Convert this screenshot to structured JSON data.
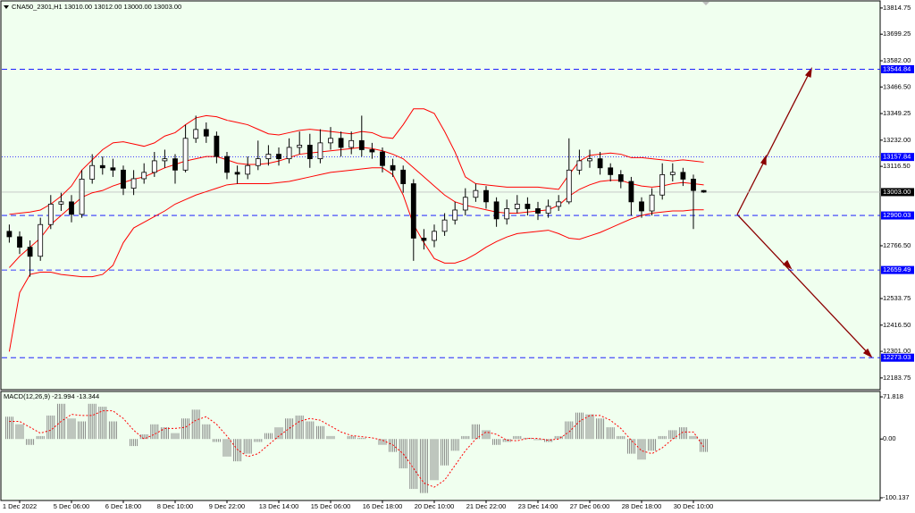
{
  "chart_data": [
    {
      "type": "candlestick",
      "title": "CNA50_2301,H1  13010.00 13012.00 13000.00 13003.00",
      "categories": [
        null,
        "1 Dec 2022",
        null,
        null,
        null,
        null,
        "5 Dec 06:00",
        null,
        null,
        null,
        null,
        "6 Dec 18:00",
        null,
        null,
        null,
        null,
        "8 Dec 10:00",
        null,
        null,
        null,
        null,
        "9 Dec 22:00",
        null,
        null,
        null,
        null,
        "13 Dec 14:00",
        null,
        null,
        null,
        null,
        "15 Dec 06:00",
        null,
        null,
        null,
        null,
        "16 Dec 18:00",
        null,
        null,
        null,
        null,
        "20 Dec 10:00",
        null,
        null,
        null,
        null,
        "21 Dec 22:00",
        null,
        null,
        null,
        null,
        "23 Dec 14:00",
        null,
        null,
        null,
        null,
        "27 Dec 06:00",
        null,
        null,
        null,
        null,
        "28 Dec 18:00",
        null,
        null,
        null,
        null,
        "30 Dec 10:00",
        null
      ],
      "open": [
        12830,
        12806,
        12760,
        12720,
        12860,
        12950,
        12960,
        12905,
        13060,
        13120,
        13110,
        13100,
        13020,
        13062,
        13090,
        13141,
        13150,
        13100,
        13240,
        13279,
        13250,
        13160,
        13090,
        13082,
        13120,
        13150,
        13170,
        13150,
        13200,
        13210,
        13150,
        13220,
        13240,
        13200,
        13230,
        13190,
        13180,
        13120,
        13100,
        13040,
        12800,
        12790,
        12830,
        12880,
        12924,
        12980,
        13010,
        12960,
        12885,
        12930,
        12950,
        12930,
        12910,
        12940,
        12960,
        13100,
        13141,
        13150,
        13110,
        13080,
        13050,
        12960,
        12920,
        12990,
        13080,
        13090,
        13060,
        13010
      ],
      "high": [
        12860,
        12830,
        12790,
        12890,
        12990,
        13000,
        12990,
        13100,
        13170,
        13160,
        13150,
        13120,
        13100,
        13130,
        13180,
        13190,
        13170,
        13300,
        13340,
        13310,
        13270,
        13180,
        13120,
        13160,
        13230,
        13210,
        13200,
        13240,
        13270,
        13260,
        13280,
        13290,
        13270,
        13270,
        13340,
        13220,
        13200,
        13150,
        13120,
        13060,
        12840,
        12860,
        12910,
        12960,
        13020,
        13040,
        13030,
        12980,
        12970,
        12990,
        12980,
        12960,
        12970,
        12990,
        13240,
        13190,
        13190,
        13180,
        13130,
        13100,
        13070,
        12980,
        13020,
        13130,
        13130,
        13110,
        13080,
        13012
      ],
      "low": [
        12780,
        12730,
        12630,
        12700,
        12840,
        12920,
        12870,
        12890,
        13040,
        13080,
        13070,
        12990,
        12990,
        13040,
        13070,
        13110,
        13040,
        13090,
        13220,
        13220,
        13130,
        13060,
        13040,
        13060,
        13100,
        13120,
        13120,
        13130,
        13170,
        13110,
        13130,
        13190,
        13160,
        13170,
        13160,
        13150,
        13090,
        13070,
        13000,
        12700,
        12750,
        12760,
        12810,
        12860,
        12900,
        12960,
        12930,
        12850,
        12860,
        12910,
        12900,
        12880,
        12890,
        12920,
        12950,
        13080,
        13110,
        13080,
        13050,
        13020,
        12900,
        12890,
        12900,
        12970,
        13050,
        13030,
        12840,
        13000
      ],
      "close": [
        12806,
        12760,
        12720,
        12860,
        12950,
        12960,
        12905,
        13060,
        13120,
        13110,
        13100,
        13020,
        13062,
        13090,
        13141,
        13150,
        13100,
        13240,
        13279,
        13250,
        13160,
        13090,
        13082,
        13120,
        13150,
        13170,
        13150,
        13200,
        13210,
        13150,
        13220,
        13240,
        13200,
        13230,
        13190,
        13180,
        13120,
        13100,
        13040,
        12800,
        12790,
        12830,
        12880,
        12924,
        12980,
        13010,
        12960,
        12885,
        12930,
        12950,
        12930,
        12910,
        12940,
        12960,
        13100,
        13141,
        13150,
        13110,
        13080,
        13050,
        12960,
        12920,
        12990,
        13080,
        13090,
        13060,
        13010,
        13003
      ],
      "upper_band": [
        12905,
        12910,
        12915,
        12924,
        12950,
        12985,
        13030,
        13100,
        13145,
        13190,
        13220,
        13225,
        13215,
        13205,
        13220,
        13250,
        13265,
        13300,
        13330,
        13340,
        13335,
        13320,
        13310,
        13300,
        13280,
        13260,
        13255,
        13265,
        13275,
        13280,
        13275,
        13270,
        13265,
        13260,
        13270,
        13265,
        13245,
        13240,
        13300,
        13370,
        13370,
        13350,
        13270,
        13180,
        13070,
        13040,
        13035,
        13030,
        13025,
        13025,
        13025,
        13025,
        13020,
        13015,
        13080,
        13140,
        13165,
        13170,
        13175,
        13170,
        13155,
        13155,
        13150,
        13145,
        13140,
        13145,
        13140,
        13135
      ],
      "middle_band": [
        12670,
        12720,
        12760,
        12800,
        12860,
        12900,
        12940,
        12980,
        13000,
        13010,
        13030,
        13045,
        13060,
        13070,
        13090,
        13110,
        13125,
        13140,
        13150,
        13160,
        13160,
        13145,
        13130,
        13125,
        13125,
        13130,
        13140,
        13155,
        13170,
        13175,
        13180,
        13185,
        13190,
        13195,
        13200,
        13195,
        13185,
        13170,
        13150,
        13110,
        13070,
        13030,
        12990,
        12960,
        12945,
        12935,
        12925,
        12915,
        12910,
        12910,
        12915,
        12920,
        12925,
        12945,
        12985,
        13015,
        13035,
        13050,
        13055,
        13055,
        13040,
        13030,
        13025,
        13030,
        13040,
        13045,
        13040,
        13035
      ],
      "lower_band": [
        12300,
        12560,
        12640,
        12650,
        12650,
        12640,
        12635,
        12630,
        12630,
        12640,
        12680,
        12780,
        12845,
        12870,
        12895,
        12920,
        12950,
        12970,
        12990,
        13005,
        13020,
        13035,
        13040,
        13040,
        13040,
        13040,
        13045,
        13050,
        13060,
        13070,
        13080,
        13090,
        13095,
        13100,
        13105,
        13110,
        13110,
        13080,
        12990,
        12860,
        12780,
        12710,
        12690,
        12690,
        12705,
        12730,
        12760,
        12785,
        12805,
        12820,
        12825,
        12830,
        12835,
        12820,
        12800,
        12795,
        12810,
        12825,
        12845,
        12865,
        12885,
        12900,
        12910,
        12915,
        12920,
        12920,
        12925,
        12925
      ],
      "band_color": "#ff0000",
      "candle_color": "#000000",
      "ylim": [
        12132,
        13842
      ],
      "yticks": [
        13814.75,
        13699.25,
        {
          "value": 13582,
          "label": "13582.00"
        },
        {
          "value": 13466.5,
          "label": "13466.50"
        },
        13349.25,
        {
          "value": 13232,
          "label": "13232.00"
        },
        {
          "value": 13116.5,
          "label": "13116.50"
        },
        {
          "value": 12766.5,
          "label": "12766.50"
        },
        12533.75,
        {
          "value": 12416.5,
          "label": "12416.50"
        },
        {
          "value": 12301,
          "label": "12301.00"
        },
        12183.75
      ],
      "levels": [
        {
          "value": 13544.84,
          "style": "dashed"
        },
        {
          "value": 13157.84,
          "style": "dotted"
        },
        {
          "value": 12900.03,
          "style": "dashed"
        },
        {
          "value": 12659.49,
          "style": "dashed"
        },
        {
          "value": 12273.03,
          "style": "dashed"
        }
      ],
      "level_color": "#0000ff",
      "last_price": {
        "value": 13003,
        "label": "13003.00"
      }
    },
    {
      "type": "macd",
      "title": "MACD(12,26,9) -21.994 -13.344",
      "values": [
        38,
        25,
        -10,
        5,
        40,
        60,
        35,
        30,
        60,
        55,
        30,
        0,
        -12,
        8,
        25,
        20,
        10,
        35,
        50,
        25,
        -5,
        -30,
        -38,
        -25,
        -5,
        10,
        20,
        35,
        40,
        30,
        22,
        5,
        0,
        5,
        2,
        0,
        -10,
        -22,
        -50,
        -85,
        -92,
        -70,
        -45,
        -20,
        5,
        25,
        15,
        -10,
        -5,
        5,
        2,
        -2,
        -5,
        5,
        30,
        45,
        42,
        35,
        20,
        5,
        -25,
        -35,
        -20,
        5,
        15,
        20,
        5,
        -21.994
      ],
      "signal": [
        30,
        30,
        20,
        10,
        15,
        30,
        42,
        40,
        40,
        48,
        48,
        35,
        15,
        0,
        8,
        18,
        18,
        20,
        32,
        38,
        25,
        5,
        -18,
        -30,
        -25,
        -10,
        5,
        18,
        30,
        35,
        32,
        22,
        12,
        6,
        4,
        2,
        -2,
        -10,
        -25,
        -50,
        -75,
        -82,
        -70,
        -45,
        -20,
        0,
        12,
        8,
        -2,
        -3,
        1,
        1,
        -2,
        0,
        12,
        30,
        40,
        40,
        32,
        18,
        -2,
        -20,
        -25,
        -15,
        0,
        12,
        12,
        -13.344
      ],
      "color": "#808080",
      "signal_color": "#ff0000",
      "ylim": [
        -104.7,
        81
      ],
      "yticks": [
        71.818,
        {
          "value": 0,
          "label": "0.00"
        },
        -100.137
      ]
    }
  ]
}
